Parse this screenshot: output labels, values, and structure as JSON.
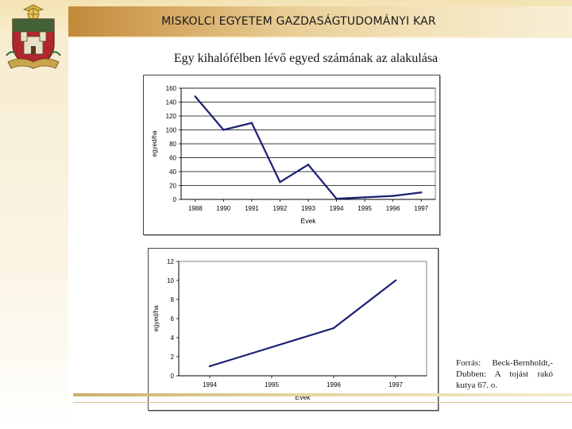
{
  "header": {
    "title": "MISKOLCI EGYETEM GAZDASÁGTUDOMÁNYI KAR"
  },
  "slide": {
    "title": "Egy kihalófélben lévő egyed  számának az alakulása"
  },
  "source_note": "Forrás: Beck-Bernholdt,-Dubben: A tojást rakó kutya 67. o.",
  "colors": {
    "line": "#1a1f73",
    "grid": "#000000",
    "header_gold": "#d6a862",
    "crest_red": "#b1272d"
  },
  "chart_data": [
    {
      "type": "line",
      "x": [
        1988,
        1990,
        1991,
        1992,
        1993,
        1994,
        1995,
        1996,
        1997
      ],
      "y": [
        148,
        100,
        110,
        25,
        50,
        1,
        3,
        5,
        10
      ],
      "categories": [
        "1988",
        "1990",
        "1991",
        "1992",
        "1993",
        "1994",
        "1995",
        "1996",
        "1997"
      ],
      "ylim": [
        0,
        160
      ],
      "yticks": [
        "0",
        "20",
        "40",
        "60",
        "80",
        "100",
        "120",
        "140",
        "160"
      ],
      "ylabel": "egyed/ha",
      "xlabel": "Évek",
      "title": "",
      "grid": "horizontal"
    },
    {
      "type": "line",
      "x": [
        1994,
        1995,
        1996,
        1997
      ],
      "y": [
        1,
        3,
        5,
        10
      ],
      "categories": [
        "1994",
        "1995",
        "1996",
        "1997"
      ],
      "ylim": [
        0,
        12
      ],
      "yticks": [
        "0",
        "2",
        "4",
        "6",
        "8",
        "10",
        "12"
      ],
      "ylabel": "egyed/ha",
      "xlabel": "Évek",
      "title": "",
      "grid": "none"
    }
  ]
}
